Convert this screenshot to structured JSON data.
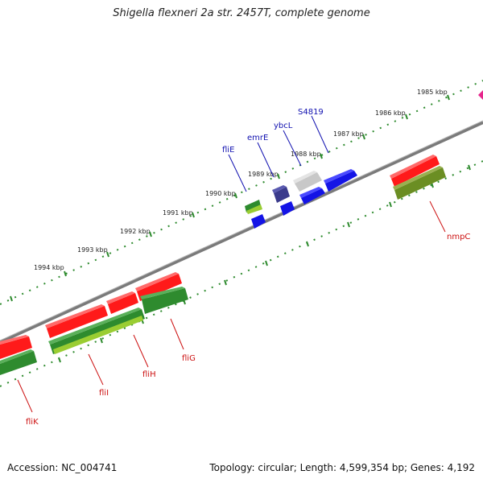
{
  "title": "Shigella flexneri 2a str. 2457T, complete genome",
  "footer": {
    "accession": "Accession: NC_004741",
    "summary": "Topology: circular; Length: 4,599,354 bp; Genes: 4,192"
  },
  "ticks": [
    "1985 kbp",
    "1986 kbp",
    "1987 kbp",
    "1988 kbp",
    "1989 kbp",
    "1990 kbp",
    "1991 kbp",
    "1992 kbp",
    "1993 kbp",
    "1994 kbp"
  ],
  "genes_forward": [
    "S4819",
    "ybcL",
    "emrE",
    "fliE"
  ],
  "genes_reverse": [
    "nmpC",
    "fliG",
    "fliH",
    "fliI",
    "fliK"
  ],
  "colors": {
    "backbone": "#7a7a7a",
    "tick": "#2e8b2e",
    "gene_red": "#ff1a1a",
    "gene_green": "#2e8b2e",
    "gene_lightgreen": "#9acd32",
    "gene_olive": "#6b8e23",
    "gene_blue": "#1414e6",
    "gene_navy": "#3a3a8c",
    "gene_grey": "#c8c8c8",
    "gene_magenta": "#e6268c",
    "label_forward": "#1010b0",
    "label_reverse": "#cc1010"
  }
}
